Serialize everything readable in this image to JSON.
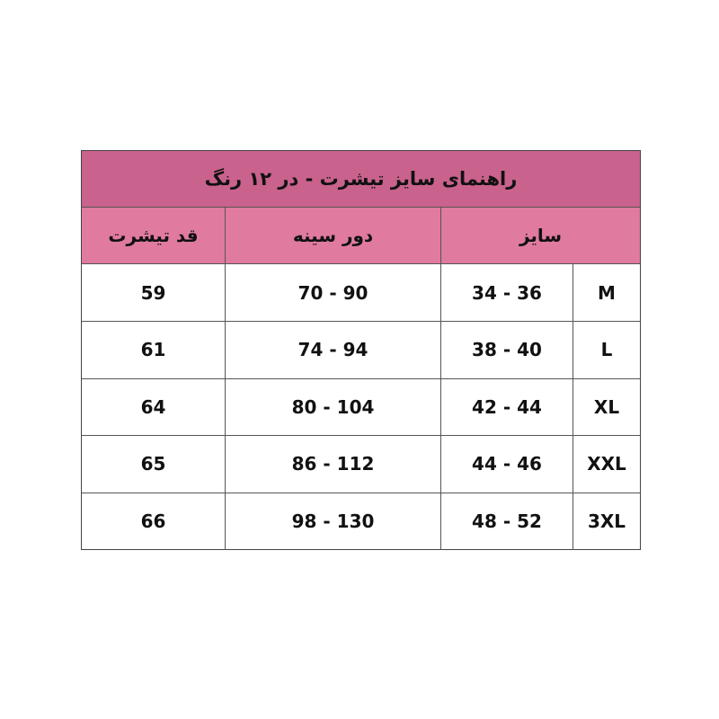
{
  "title": "راهنمای سایز تیشرت - در ۱۲ رنگ",
  "colors": {
    "title_bg": "#c9628c",
    "header_bg": "#e07a9f",
    "border": "#555555"
  },
  "headers": {
    "size": "سایز",
    "chest": "دور سینه",
    "length": "قد تیشرت"
  },
  "rows": [
    {
      "size": "M",
      "size_range": "34 - 36",
      "chest": "70 - 90",
      "length": "59"
    },
    {
      "size": "L",
      "size_range": "38 - 40",
      "chest": "74 - 94",
      "length": "61"
    },
    {
      "size": "XL",
      "size_range": "42 - 44",
      "chest": "80 - 104",
      "length": "64"
    },
    {
      "size": "XXL",
      "size_range": "44 - 46",
      "chest": "86 - 112",
      "length": "65"
    },
    {
      "size": "3XL",
      "size_range": "48 - 52",
      "chest": "98 - 130",
      "length": "66"
    }
  ]
}
